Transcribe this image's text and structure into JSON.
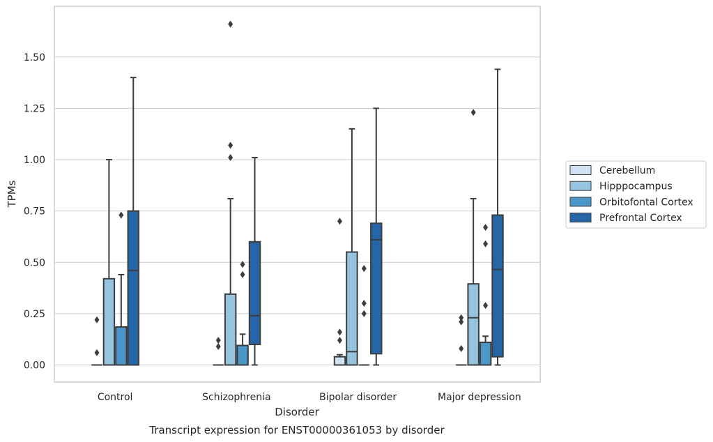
{
  "chart_data": {
    "type": "boxplot",
    "title": "Transcript expression for ENST00000361053 by disorder",
    "xlabel": "Disorder",
    "ylabel": "TPMs",
    "ylim": [
      -0.08,
      1.78
    ],
    "yticks": [
      0.0,
      0.25,
      0.5,
      0.75,
      1.0,
      1.25,
      1.5
    ],
    "ytick_labels": [
      "0.00",
      "0.25",
      "0.50",
      "0.75",
      "1.00",
      "1.25",
      "1.50"
    ],
    "grid": true,
    "legend_position": "right",
    "categories": [
      "Control",
      "Schizophrenia",
      "Bipolar disorder",
      "Major depression"
    ],
    "series": [
      {
        "name": "Cerebellum",
        "color": "#d0e1f2",
        "boxes": [
          {
            "whisker_low": 0.0,
            "q1": 0.0,
            "median": 0.0,
            "q3": 0.0,
            "whisker_high": 0.0,
            "outliers": [
              0.06,
              0.22
            ]
          },
          {
            "whisker_low": 0.0,
            "q1": 0.0,
            "median": 0.0,
            "q3": 0.0,
            "whisker_high": 0.0,
            "outliers": [
              0.09,
              0.12
            ]
          },
          {
            "whisker_low": 0.0,
            "q1": 0.0,
            "median": 0.0,
            "q3": 0.04,
            "whisker_high": 0.05,
            "outliers": [
              0.12,
              0.16,
              0.7
            ]
          },
          {
            "whisker_low": 0.0,
            "q1": 0.0,
            "median": 0.0,
            "q3": 0.0,
            "whisker_high": 0.0,
            "outliers": [
              0.08,
              0.21,
              0.23
            ]
          }
        ]
      },
      {
        "name": "Hipppocampus",
        "color": "#94c4df",
        "boxes": [
          {
            "whisker_low": 0.0,
            "q1": 0.0,
            "median": 0.0,
            "q3": 0.42,
            "whisker_high": 1.0,
            "outliers": []
          },
          {
            "whisker_low": 0.0,
            "q1": 0.0,
            "median": 0.0,
            "q3": 0.345,
            "whisker_high": 0.81,
            "outliers": [
              1.01,
              1.07,
              1.66
            ]
          },
          {
            "whisker_low": 0.0,
            "q1": 0.0,
            "median": 0.065,
            "q3": 0.55,
            "whisker_high": 1.15,
            "outliers": []
          },
          {
            "whisker_low": 0.0,
            "q1": 0.0,
            "median": 0.23,
            "q3": 0.395,
            "whisker_high": 0.81,
            "outliers": [
              1.23
            ]
          }
        ]
      },
      {
        "name": "Orbitofontal Cortex",
        "color": "#4a98c9",
        "boxes": [
          {
            "whisker_low": 0.0,
            "q1": 0.0,
            "median": 0.0,
            "q3": 0.185,
            "whisker_high": 0.44,
            "outliers": [
              0.73
            ]
          },
          {
            "whisker_low": 0.0,
            "q1": 0.0,
            "median": 0.0,
            "q3": 0.095,
            "whisker_high": 0.15,
            "outliers": [
              0.44,
              0.49
            ]
          },
          {
            "whisker_low": 0.0,
            "q1": 0.0,
            "median": 0.0,
            "q3": 0.0,
            "whisker_high": 0.0,
            "outliers": [
              0.25,
              0.3,
              0.47
            ]
          },
          {
            "whisker_low": 0.0,
            "q1": 0.0,
            "median": 0.0,
            "q3": 0.11,
            "whisker_high": 0.14,
            "outliers": [
              0.29,
              0.59,
              0.67
            ]
          }
        ]
      },
      {
        "name": "Prefrontal Cortex",
        "color": "#2566a8",
        "boxes": [
          {
            "whisker_low": 0.0,
            "q1": 0.0,
            "median": 0.46,
            "q3": 0.75,
            "whisker_high": 1.4,
            "outliers": []
          },
          {
            "whisker_low": 0.0,
            "q1": 0.1,
            "median": 0.24,
            "q3": 0.6,
            "whisker_high": 1.01,
            "outliers": []
          },
          {
            "whisker_low": 0.0,
            "q1": 0.055,
            "median": 0.61,
            "q3": 0.69,
            "whisker_high": 1.25,
            "outliers": []
          },
          {
            "whisker_low": 0.0,
            "q1": 0.04,
            "median": 0.465,
            "q3": 0.73,
            "whisker_high": 1.44,
            "outliers": []
          }
        ]
      }
    ]
  }
}
